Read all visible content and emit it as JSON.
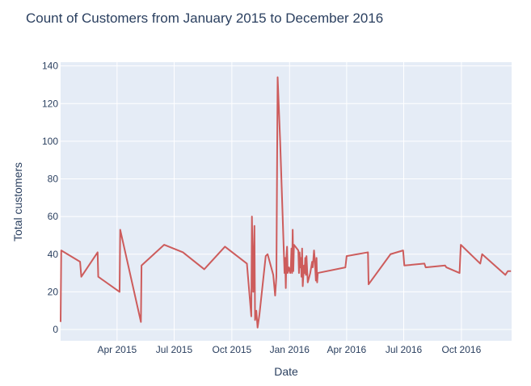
{
  "chart_data": {
    "type": "line",
    "title": "Count of Customers from January 2015 to December 2016",
    "xlabel": "Date",
    "ylabel": "Total customers",
    "x_range": [
      "2015-01-01",
      "2016-12-20"
    ],
    "ylim": [
      -6,
      142
    ],
    "y_ticks": [
      0,
      20,
      40,
      60,
      80,
      100,
      120,
      140
    ],
    "x_ticks": [
      {
        "date": "2015-04-01",
        "label": "Apr 2015"
      },
      {
        "date": "2015-07-01",
        "label": "Jul 2015"
      },
      {
        "date": "2015-10-01",
        "label": "Oct 2015"
      },
      {
        "date": "2016-01-01",
        "label": "Jan 2016"
      },
      {
        "date": "2016-04-01",
        "label": "Apr 2016"
      },
      {
        "date": "2016-07-01",
        "label": "Jul 2016"
      },
      {
        "date": "2016-10-01",
        "label": "Oct 2016"
      }
    ],
    "grid": true,
    "background_color": "#E5ECF6",
    "series": [
      {
        "color": "#CD5C5C",
        "points": [
          [
            "2015-01-01",
            4
          ],
          [
            "2015-01-02",
            42
          ],
          [
            "2015-02-01",
            36
          ],
          [
            "2015-02-03",
            28
          ],
          [
            "2015-03-01",
            41
          ],
          [
            "2015-03-02",
            28
          ],
          [
            "2015-04-05",
            20
          ],
          [
            "2015-04-06",
            53
          ],
          [
            "2015-05-09",
            4
          ],
          [
            "2015-05-10",
            34
          ],
          [
            "2015-06-15",
            45
          ],
          [
            "2015-07-15",
            41
          ],
          [
            "2015-08-18",
            32
          ],
          [
            "2015-09-20",
            44
          ],
          [
            "2015-10-25",
            35
          ],
          [
            "2015-11-01",
            7
          ],
          [
            "2015-11-02",
            60
          ],
          [
            "2015-11-04",
            20
          ],
          [
            "2015-11-06",
            55
          ],
          [
            "2015-11-07",
            5
          ],
          [
            "2015-11-09",
            10
          ],
          [
            "2015-11-11",
            1
          ],
          [
            "2015-11-14",
            8
          ],
          [
            "2015-11-24",
            39
          ],
          [
            "2015-11-27",
            40
          ],
          [
            "2015-12-06",
            29
          ],
          [
            "2015-12-09",
            18
          ],
          [
            "2015-12-11",
            28
          ],
          [
            "2015-12-13",
            134
          ],
          [
            "2015-12-17",
            100
          ],
          [
            "2015-12-23",
            40
          ],
          [
            "2015-12-24",
            30
          ],
          [
            "2015-12-25",
            38
          ],
          [
            "2015-12-26",
            22
          ],
          [
            "2015-12-27",
            38
          ],
          [
            "2015-12-28",
            44
          ],
          [
            "2015-12-29",
            30
          ],
          [
            "2015-12-31",
            33
          ],
          [
            "2016-01-02",
            30
          ],
          [
            "2016-01-03",
            33
          ],
          [
            "2016-01-04",
            43
          ],
          [
            "2016-01-05",
            30
          ],
          [
            "2016-01-06",
            53
          ],
          [
            "2016-01-07",
            31
          ],
          [
            "2016-01-08",
            45
          ],
          [
            "2016-01-15",
            42
          ],
          [
            "2016-01-16",
            30
          ],
          [
            "2016-01-17",
            41
          ],
          [
            "2016-01-18",
            33
          ],
          [
            "2016-01-19",
            38
          ],
          [
            "2016-01-20",
            28
          ],
          [
            "2016-01-21",
            43
          ],
          [
            "2016-01-22",
            23
          ],
          [
            "2016-01-24",
            34
          ],
          [
            "2016-01-25",
            30
          ],
          [
            "2016-01-26",
            38
          ],
          [
            "2016-01-27",
            29
          ],
          [
            "2016-01-28",
            39
          ],
          [
            "2016-01-30",
            25
          ],
          [
            "2016-02-03",
            30
          ],
          [
            "2016-02-06",
            36
          ],
          [
            "2016-02-07",
            33
          ],
          [
            "2016-02-09",
            42
          ],
          [
            "2016-02-10",
            38
          ],
          [
            "2016-02-11",
            32
          ],
          [
            "2016-02-12",
            26
          ],
          [
            "2016-02-13",
            38
          ],
          [
            "2016-02-14",
            25
          ],
          [
            "2016-02-15",
            30
          ],
          [
            "2016-03-30",
            33
          ],
          [
            "2016-04-01",
            39
          ],
          [
            "2016-05-05",
            41
          ],
          [
            "2016-05-06",
            24
          ],
          [
            "2016-06-10",
            40
          ],
          [
            "2016-06-30",
            42
          ],
          [
            "2016-07-02",
            34
          ],
          [
            "2016-08-03",
            35
          ],
          [
            "2016-08-05",
            33
          ],
          [
            "2016-09-05",
            34
          ],
          [
            "2016-09-07",
            33
          ],
          [
            "2016-09-28",
            30
          ],
          [
            "2016-09-30",
            45
          ],
          [
            "2016-10-31",
            35
          ],
          [
            "2016-11-03",
            40
          ],
          [
            "2016-12-10",
            29
          ],
          [
            "2016-12-14",
            31
          ],
          [
            "2016-12-19",
            31
          ]
        ]
      }
    ]
  }
}
